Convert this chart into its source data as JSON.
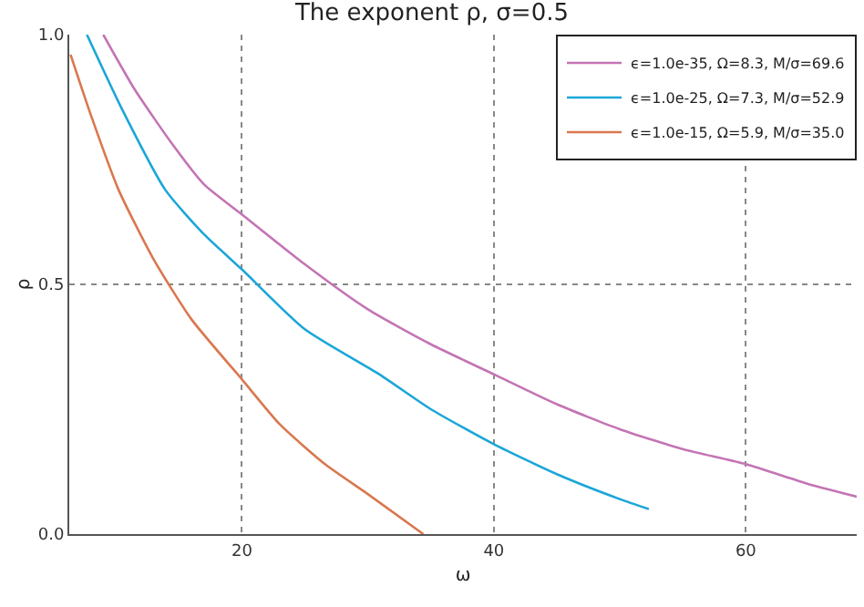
{
  "chart_data": {
    "type": "line",
    "title": "The exponent ρ, σ=0.5",
    "xlabel": "ω",
    "ylabel": "ρ",
    "xlim": [
      6.3,
      68.8
    ],
    "ylim": [
      0,
      1
    ],
    "xticks": [
      {
        "value": 20,
        "label": "20"
      },
      {
        "value": 40,
        "label": "40"
      },
      {
        "value": 60,
        "label": "60"
      }
    ],
    "yticks": [
      {
        "value": 0,
        "label": "0.0"
      },
      {
        "value": 0.5,
        "label": "0.5"
      },
      {
        "value": 1,
        "label": "1.0"
      }
    ],
    "grid": true,
    "legend": "top right",
    "marker": "none",
    "line_style": "solid",
    "series": [
      {
        "name": "ϵ=1.0e-35, Ω=8.3, M/σ=69.6",
        "color": "#c474b4",
        "x": [
          9.0,
          11.5,
          14.5,
          17,
          20,
          25,
          30,
          35,
          40,
          45,
          50,
          55,
          60,
          65,
          68.8
        ],
        "values": [
          1.0,
          0.89,
          0.78,
          0.7,
          0.64,
          0.54,
          0.45,
          0.38,
          0.32,
          0.26,
          0.21,
          0.17,
          0.14,
          0.1,
          0.075
        ]
      },
      {
        "name": "ϵ=1.0e-25, Ω=7.3, M/σ=52.9",
        "color": "#1ba6d8",
        "x": [
          7.7,
          10.5,
          13.9,
          17,
          20,
          25,
          30.9,
          35,
          40,
          45,
          50,
          52.3
        ],
        "values": [
          1.0,
          0.85,
          0.69,
          0.6,
          0.53,
          0.41,
          0.32,
          0.25,
          0.18,
          0.12,
          0.07,
          0.05
        ]
      },
      {
        "name": "ϵ=1.0e-15, Ω=5.9, M/σ=35.0",
        "color": "#d9784e",
        "x": [
          6.4,
          8,
          10.2,
          13,
          16,
          20,
          23,
          26.6,
          30,
          34.4
        ],
        "values": [
          0.96,
          0.84,
          0.69,
          0.55,
          0.43,
          0.31,
          0.22,
          0.14,
          0.08,
          0.0
        ]
      }
    ]
  }
}
